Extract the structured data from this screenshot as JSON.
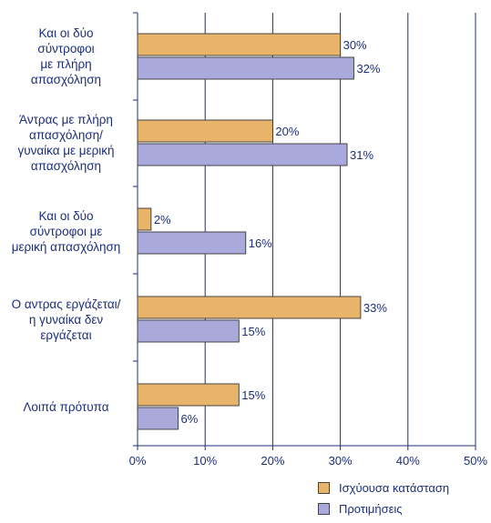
{
  "chart_data": {
    "type": "bar",
    "orientation": "horizontal",
    "categories": [
      "Και οι δύο\nσύντροφοι\nμε πλήρη\nαπασχόληση",
      "Άντρας με πλήρη\nαπασχόληση/\nγυναίκα με μερική\nαπασχόληση",
      "Και οι δύο\nσύντροφοι με\nμερική απασχόληση",
      "Ο αντρας εργάζεται/\nη γυναίκα δεν\nεργάζεται",
      "Λοιπά πρότυπα"
    ],
    "series": [
      {
        "name": "Ισχύουσα κατάσταση",
        "color": "#e8b46a",
        "values": [
          30,
          20,
          2,
          33,
          15
        ]
      },
      {
        "name": "Προτιμήσεις",
        "color": "#a9a9dc",
        "values": [
          32,
          31,
          16,
          15,
          6
        ]
      }
    ],
    "value_suffix": "%",
    "xlim": [
      0,
      50
    ],
    "xticks": [
      "0%",
      "10%",
      "20%",
      "30%",
      "40%",
      "50%"
    ],
    "grid": true,
    "legend_position": "bottom-right",
    "axis_color": "#1c2f78",
    "bar_border_color": "#444444"
  }
}
